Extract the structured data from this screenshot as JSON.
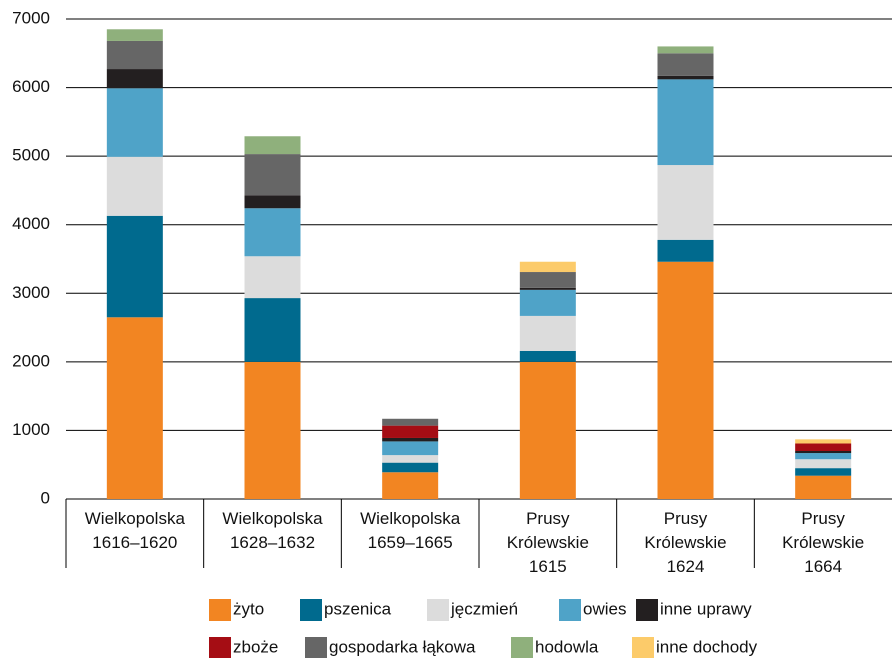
{
  "chart_data": {
    "type": "stacked_bar",
    "categories": [
      [
        "Wielkopolska",
        "1616–1620"
      ],
      [
        "Wielkopolska",
        "1628–1632"
      ],
      [
        "Wielkopolska",
        "1659–1665"
      ],
      [
        "Prusy",
        "Królewskie",
        "1615"
      ],
      [
        "Prusy",
        "Królewskie",
        "1624"
      ],
      [
        "Prusy",
        "Królewskie",
        "1664"
      ]
    ],
    "series": [
      {
        "name": "żyto",
        "color": "#f28522",
        "values": [
          2650,
          2000,
          390,
          2000,
          3460,
          340
        ]
      },
      {
        "name": "pszenica",
        "color": "#006a8e",
        "values": [
          1480,
          930,
          140,
          160,
          320,
          110
        ]
      },
      {
        "name": "jęczmień",
        "color": "#dcdcdc",
        "values": [
          860,
          610,
          110,
          510,
          1090,
          130
        ]
      },
      {
        "name": "owies",
        "color": "#4fa3c8",
        "values": [
          1000,
          700,
          200,
          380,
          1250,
          90
        ]
      },
      {
        "name": "inne uprawy",
        "color": "#231f20",
        "values": [
          280,
          190,
          50,
          30,
          50,
          30
        ]
      },
      {
        "name": "zboże",
        "color": "#a50d14",
        "values": [
          0,
          0,
          180,
          0,
          0,
          110
        ]
      },
      {
        "name": "gospodarka łąkowa",
        "color": "#666666",
        "values": [
          410,
          600,
          100,
          230,
          330,
          0
        ]
      },
      {
        "name": "hodowla",
        "color": "#8fb07c",
        "values": [
          170,
          260,
          0,
          0,
          100,
          0
        ]
      },
      {
        "name": "inne dochody",
        "color": "#fccb6a",
        "values": [
          0,
          0,
          0,
          150,
          0,
          60
        ]
      }
    ],
    "ylim": [
      0,
      7000
    ],
    "yticks": [
      0,
      1000,
      2000,
      3000,
      4000,
      5000,
      6000,
      7000
    ],
    "grid": true
  }
}
